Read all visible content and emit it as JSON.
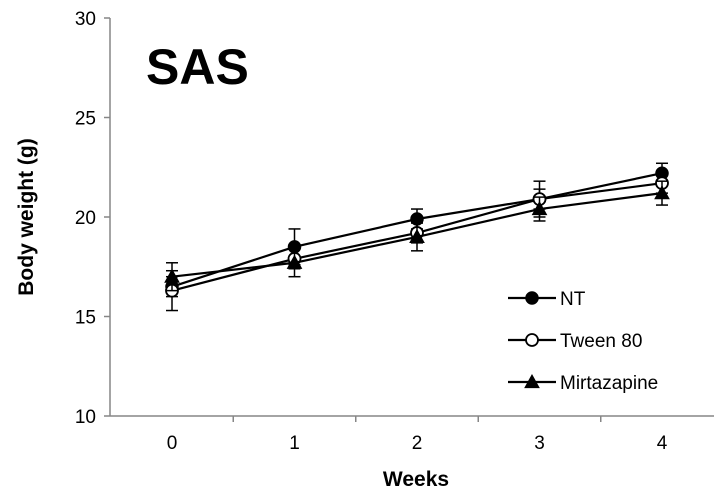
{
  "chart_data": {
    "type": "line",
    "panel_label": "SAS",
    "xlabel": "Weeks",
    "ylabel": "Body weight (g)",
    "categories": [
      "0",
      "1",
      "2",
      "3",
      "4"
    ],
    "x": [
      0,
      1,
      2,
      3,
      4
    ],
    "ylim": [
      10,
      30
    ],
    "yticks": [
      10,
      15,
      20,
      25,
      30
    ],
    "grid": false,
    "legend_position": "bottom-right",
    "series": [
      {
        "name": "NT",
        "marker": "filled-circle",
        "values": [
          16.5,
          18.5,
          19.9,
          20.9,
          22.2
        ],
        "errors": [
          0.5,
          0.9,
          0.5,
          0.5,
          0.5
        ]
      },
      {
        "name": "Tween 80",
        "marker": "open-circle",
        "values": [
          16.3,
          17.9,
          19.2,
          20.9,
          21.7
        ],
        "errors": [
          1.0,
          0.5,
          0.5,
          0.9,
          0.5
        ]
      },
      {
        "name": "Mirtazapine",
        "marker": "filled-triangle",
        "values": [
          17.0,
          17.7,
          19.0,
          20.4,
          21.2
        ],
        "errors": [
          0.7,
          0.7,
          0.7,
          0.6,
          0.6
        ]
      }
    ],
    "colors": {
      "line": "#000000",
      "background": "#ffffff"
    }
  }
}
